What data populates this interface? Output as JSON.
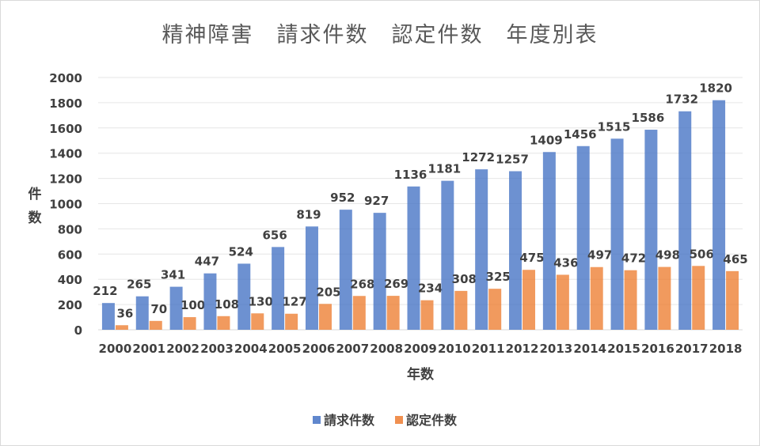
{
  "chart_data": {
    "type": "bar",
    "title": "精神障害　請求件数　認定件数　年度別表",
    "xlabel": "年数",
    "ylabel": "件数",
    "ylim": [
      0,
      2000
    ],
    "yticks": [
      0,
      200,
      400,
      600,
      800,
      1000,
      1200,
      1400,
      1600,
      1800,
      2000
    ],
    "grid": true,
    "legend_position": "bottom",
    "categories": [
      "2000",
      "2001",
      "2002",
      "2003",
      "2004",
      "2005",
      "2006",
      "2007",
      "2008",
      "2009",
      "2010",
      "2011",
      "2012",
      "2013",
      "2014",
      "2015",
      "2016",
      "2017",
      "2018"
    ],
    "series": [
      {
        "name": "請求件数",
        "color": "#4472c4",
        "values": [
          212,
          265,
          341,
          447,
          524,
          656,
          819,
          952,
          927,
          1136,
          1181,
          1272,
          1257,
          1409,
          1456,
          1515,
          1586,
          1732,
          1820
        ]
      },
      {
        "name": "認定件数",
        "color": "#ed7d31",
        "values": [
          36,
          70,
          100,
          108,
          130,
          127,
          205,
          268,
          269,
          234,
          308,
          325,
          475,
          436,
          497,
          472,
          498,
          506,
          465
        ]
      }
    ]
  }
}
